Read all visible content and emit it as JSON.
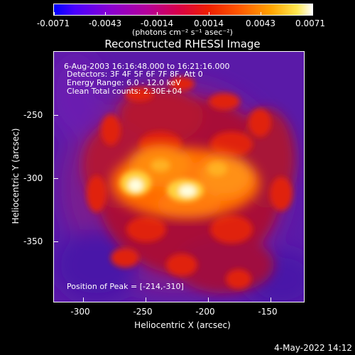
{
  "colorbar": {
    "labels": [
      "-0.0071",
      "-0.0043",
      "-0.0014",
      "0.0014",
      "0.0043",
      "0.0071"
    ],
    "units": "(photons cm⁻² s⁻¹ asec⁻²)"
  },
  "title": "Reconstructed RHESSI Image",
  "annotations": {
    "time_range": "6-Aug-2003 16:16:48.000 to 16:21:16.000",
    "detectors": "Detectors: 3F 4F 5F 6F 7F 8F, Att 0",
    "energy": "Energy Range: 6.0 - 12.0 keV",
    "clean": "Clean     Total counts: 2.30E+04",
    "peak": "Position of Peak = [-214,-310]"
  },
  "axes": {
    "xlabel": "Heliocentric X (arcsec)",
    "ylabel": "Heliocentric Y (arcsec)",
    "xticks": [
      "-300",
      "-250",
      "-200",
      "-150"
    ],
    "yticks": [
      "-250",
      "-300",
      "-350"
    ]
  },
  "datestamp": "4-May-2022 14:12"
}
